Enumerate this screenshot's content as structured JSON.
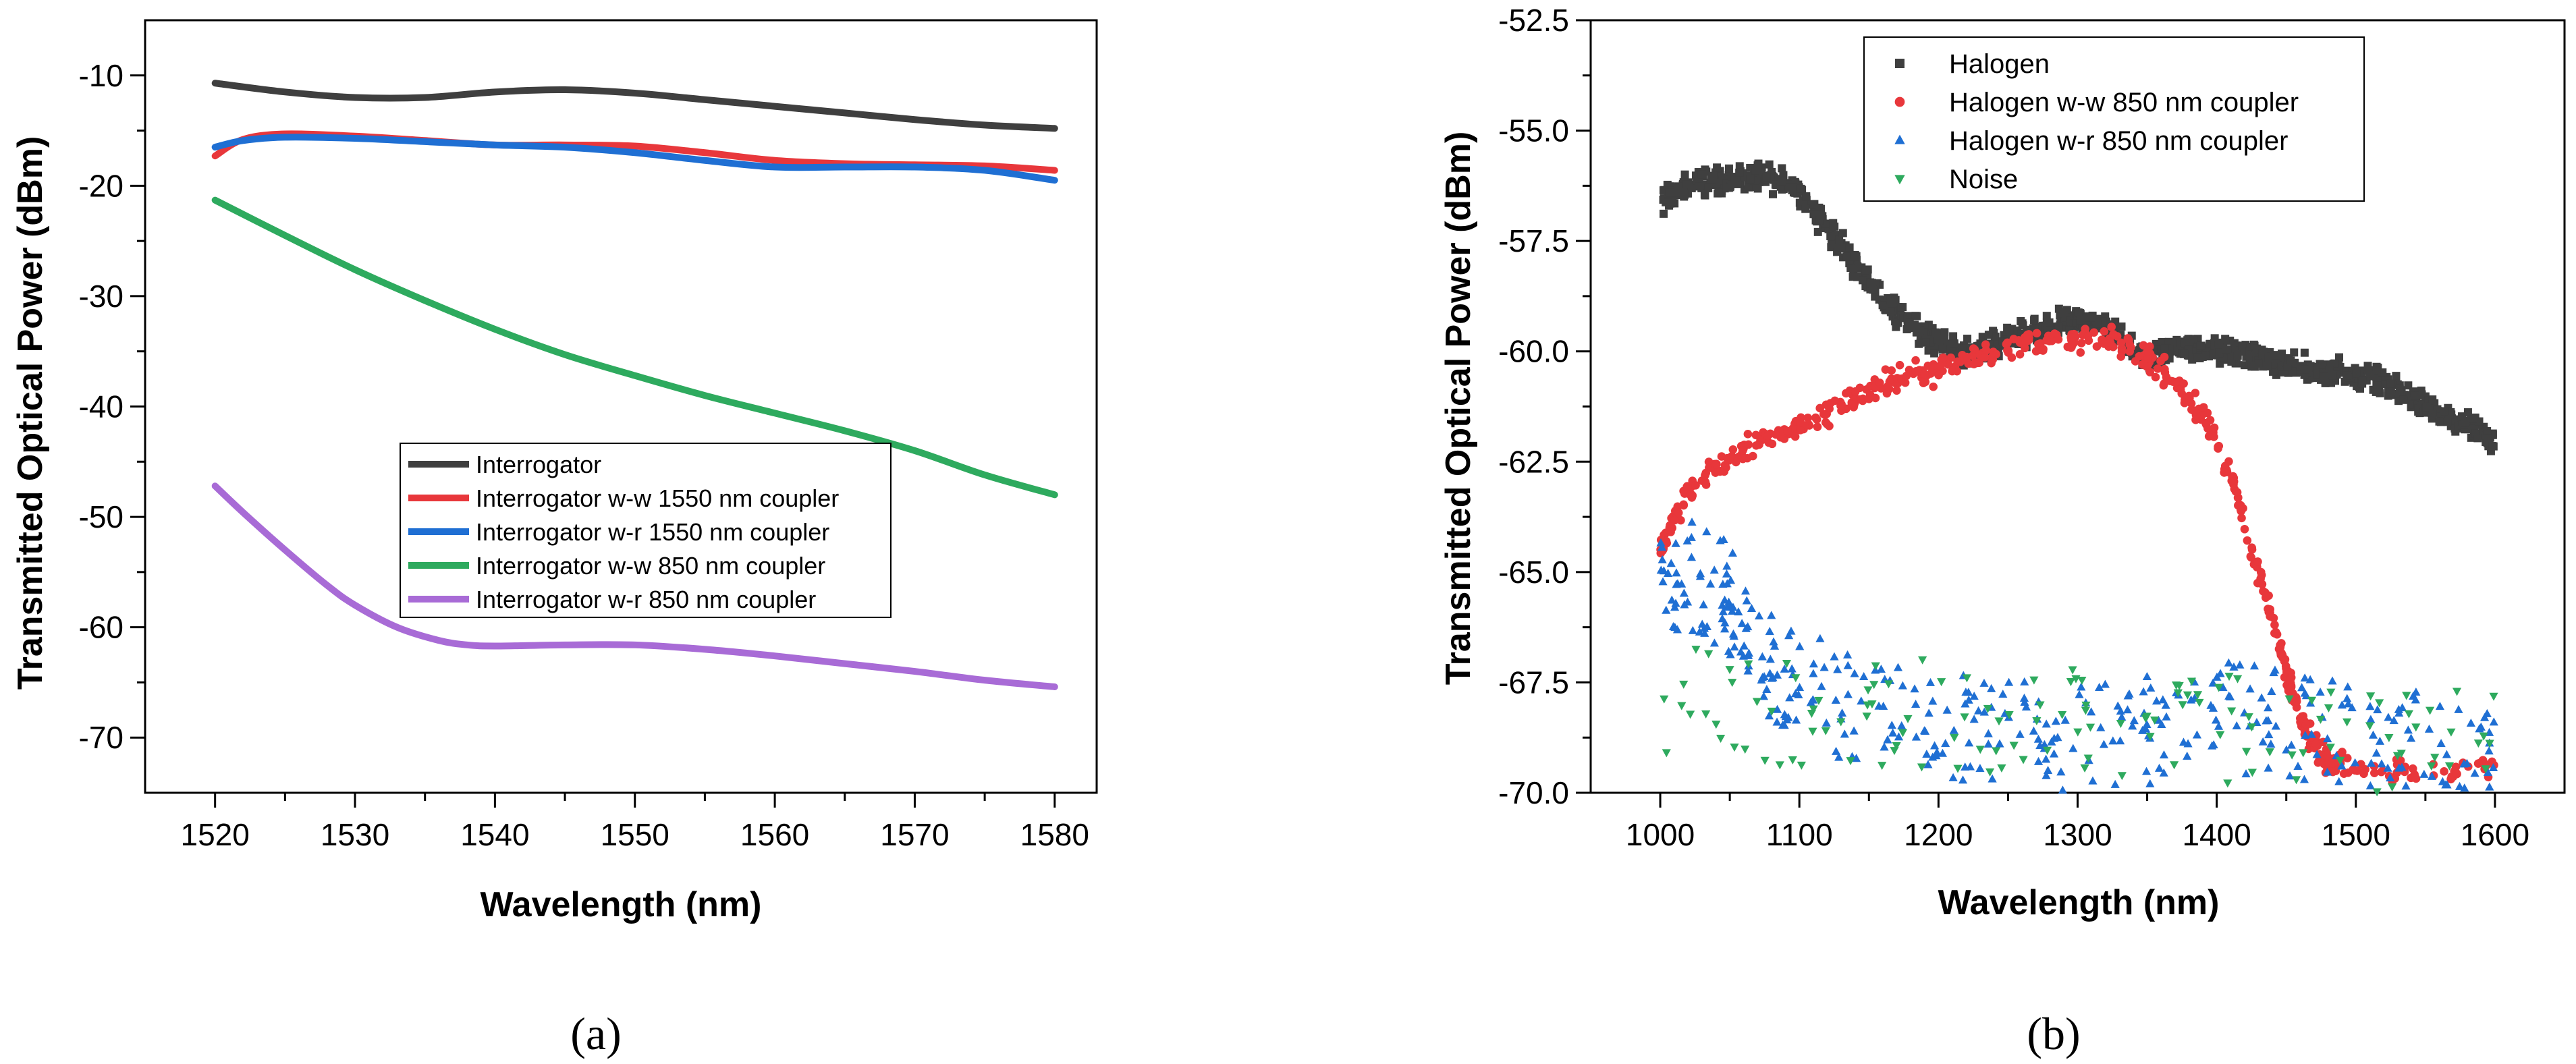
{
  "colors": {
    "gray": "#3f3f3f",
    "red": "#e8373b",
    "blue": "#1f6fd3",
    "green": "#2eaa5e",
    "purple": "#a86bd6",
    "axis": "#000000",
    "background": "#ffffff"
  },
  "chart_data": [
    {
      "type": "line",
      "panel_label": "(a)",
      "xlabel": "Wavelength (nm)",
      "ylabel": "Transmitted Optical Power (dBm)",
      "xlim": [
        1515,
        1583
      ],
      "ylim": [
        -75,
        -5
      ],
      "xticks": [
        1520,
        1530,
        1540,
        1550,
        1560,
        1570,
        1580
      ],
      "xtick_labels": [
        "1520",
        "1530",
        "1540",
        "1550",
        "1560",
        "1570",
        "1580"
      ],
      "yticks": [
        -10,
        -20,
        -30,
        -40,
        -50,
        -60,
        -70
      ],
      "ytick_labels": [
        "-10",
        "-20",
        "-30",
        "-40",
        "-50",
        "-60",
        "-70"
      ],
      "legend_position": "center",
      "series": [
        {
          "name": "Interrogator",
          "color_key": "gray",
          "x": [
            1520,
            1525,
            1530,
            1535,
            1540,
            1545,
            1550,
            1555,
            1560,
            1565,
            1570,
            1575,
            1580
          ],
          "y": [
            -10.7,
            -11.5,
            -12.0,
            -12.0,
            -11.5,
            -11.3,
            -11.6,
            -12.2,
            -12.8,
            -13.4,
            -14.0,
            -14.5,
            -14.8
          ]
        },
        {
          "name": "Interrogator w-w 1550 nm coupler",
          "color_key": "red",
          "x": [
            1520,
            1522,
            1525,
            1530,
            1535,
            1540,
            1545,
            1550,
            1555,
            1560,
            1565,
            1570,
            1575,
            1580
          ],
          "y": [
            -17.3,
            -15.8,
            -15.3,
            -15.5,
            -15.9,
            -16.3,
            -16.3,
            -16.4,
            -17.0,
            -17.7,
            -18.0,
            -18.1,
            -18.2,
            -18.6
          ]
        },
        {
          "name": "Interrogator w-r 1550 nm coupler",
          "color_key": "blue",
          "x": [
            1520,
            1522,
            1525,
            1530,
            1535,
            1540,
            1545,
            1550,
            1555,
            1560,
            1565,
            1570,
            1575,
            1580
          ],
          "y": [
            -16.5,
            -15.9,
            -15.6,
            -15.7,
            -16.0,
            -16.3,
            -16.5,
            -17.0,
            -17.7,
            -18.3,
            -18.3,
            -18.3,
            -18.6,
            -19.5
          ]
        },
        {
          "name": "Interrogator w-w 850 nm coupler",
          "color_key": "green",
          "x": [
            1520,
            1525,
            1530,
            1535,
            1540,
            1545,
            1550,
            1555,
            1560,
            1565,
            1570,
            1575,
            1580
          ],
          "y": [
            -21.3,
            -24.5,
            -27.6,
            -30.4,
            -33.0,
            -35.3,
            -37.2,
            -39.0,
            -40.6,
            -42.2,
            -44.0,
            -46.2,
            -48.0
          ]
        },
        {
          "name": "Interrogator w-r 850 nm coupler",
          "color_key": "purple",
          "x": [
            1520,
            1522,
            1525,
            1528,
            1530,
            1533,
            1536,
            1538,
            1540,
            1545,
            1550,
            1555,
            1560,
            1565,
            1570,
            1575,
            1580
          ],
          "y": [
            -47.2,
            -49.6,
            -53.0,
            -56.2,
            -58.0,
            -60.0,
            -61.2,
            -61.6,
            -61.7,
            -61.6,
            -61.6,
            -62.0,
            -62.6,
            -63.3,
            -64.0,
            -64.8,
            -65.4
          ]
        }
      ]
    },
    {
      "type": "scatter",
      "panel_label": "(b)",
      "xlabel": "Wavelength (nm)",
      "ylabel": "Transmitted Optical Power (dBm)",
      "xlim": [
        950,
        1650
      ],
      "ylim": [
        -70,
        -52.5
      ],
      "xticks": [
        1000,
        1100,
        1200,
        1300,
        1400,
        1500,
        1600
      ],
      "xtick_labels": [
        "1000",
        "1100",
        "1200",
        "1300",
        "1400",
        "1500",
        "1600"
      ],
      "yticks": [
        -52.5,
        -55,
        -57.5,
        -60,
        -62.5,
        -65,
        -67.5,
        -70
      ],
      "ytick_labels": [
        "-52.5",
        "-55.0",
        "-57.5",
        "-60.0",
        "-62.5",
        "-65.0",
        "-67.5",
        "-70.0"
      ],
      "legend_position": "top-left",
      "series": [
        {
          "name": "Halogen",
          "color_key": "gray",
          "marker": "square",
          "x": [
            1000,
            1025,
            1050,
            1075,
            1100,
            1125,
            1150,
            1175,
            1200,
            1225,
            1250,
            1275,
            1300,
            1325,
            1350,
            1375,
            1400,
            1425,
            1450,
            1475,
            1500,
            1525,
            1550,
            1575,
            1600
          ],
          "y": [
            -56.6,
            -56.2,
            -56.1,
            -56.0,
            -56.4,
            -57.4,
            -58.4,
            -59.3,
            -59.8,
            -60.1,
            -59.7,
            -59.5,
            -59.3,
            -59.6,
            -60.2,
            -59.9,
            -60.0,
            -60.1,
            -60.3,
            -60.5,
            -60.5,
            -60.8,
            -61.2,
            -61.6,
            -62.0
          ],
          "spread": 0.5,
          "points_per_segment": 48
        },
        {
          "name": "Halogen w-w 850 nm coupler",
          "color_key": "red",
          "marker": "circle",
          "x": [
            1000,
            1010,
            1025,
            1050,
            1075,
            1100,
            1125,
            1150,
            1175,
            1200,
            1225,
            1250,
            1275,
            1300,
            1325,
            1350,
            1370,
            1390,
            1410,
            1425,
            1440,
            1450,
            1460,
            1470,
            1480,
            1500,
            1550,
            1600
          ],
          "y": [
            -64.5,
            -63.8,
            -63.0,
            -62.4,
            -62.0,
            -61.7,
            -61.3,
            -60.9,
            -60.6,
            -60.4,
            -60.1,
            -59.9,
            -59.8,
            -59.7,
            -59.8,
            -60.1,
            -60.7,
            -61.5,
            -62.8,
            -64.5,
            -66.0,
            -67.3,
            -68.2,
            -68.9,
            -69.3,
            -69.4,
            -69.5,
            -69.4
          ],
          "spread": 0.5,
          "points_per_segment": 22
        },
        {
          "name": "Halogen w-r 850 nm coupler",
          "color_key": "blue",
          "marker": "triangle-up",
          "x": [
            1000,
            1025,
            1050,
            1075,
            1100,
            1150,
            1200,
            1250,
            1300,
            1350,
            1400,
            1450,
            1500,
            1550,
            1600
          ],
          "y": [
            -65.5,
            -65.5,
            -66.0,
            -67.5,
            -68.0,
            -68.6,
            -68.8,
            -69.0,
            -69.2,
            -69.0,
            -68.6,
            -68.9,
            -69.2,
            -69.4,
            -69.5
          ],
          "spread": 1.6,
          "points_per_segment": 28
        },
        {
          "name": "Noise",
          "color_key": "green",
          "marker": "triangle-down",
          "x": [
            1000,
            1050,
            1100,
            1150,
            1200,
            1250,
            1300,
            1350,
            1400,
            1450,
            1500,
            1550,
            1600
          ],
          "y": [
            -68.3,
            -68.4,
            -68.5,
            -68.6,
            -68.5,
            -68.7,
            -68.8,
            -68.9,
            -69.0,
            -69.1,
            -69.3,
            -69.4,
            -69.2
          ],
          "spread": 1.6,
          "points_per_segment": 11
        }
      ]
    }
  ]
}
